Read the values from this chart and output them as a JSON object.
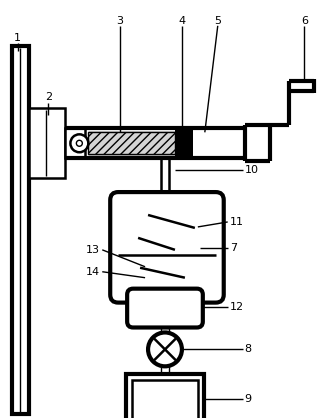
{
  "bg_color": "#ffffff",
  "line_color": "#000000",
  "lw_thin": 1.0,
  "lw_med": 1.8,
  "lw_thick": 3.0,
  "font_size": 8,
  "fig_w": 3.23,
  "fig_h": 4.19,
  "dpi": 100
}
